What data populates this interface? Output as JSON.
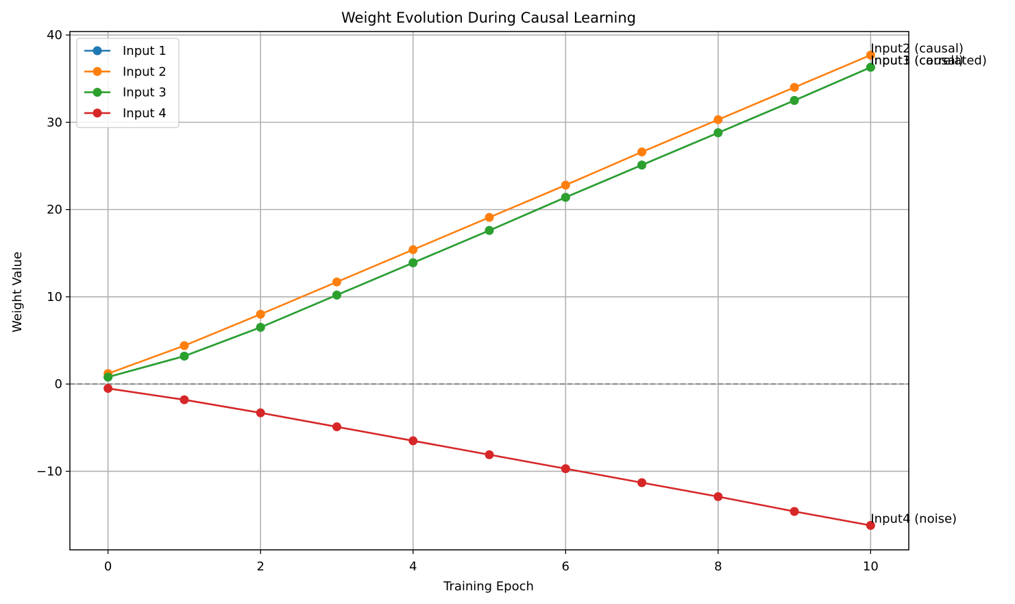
{
  "chart_data": {
    "type": "line",
    "title": "Weight Evolution During Causal Learning",
    "xlabel": "Training Epoch",
    "ylabel": "Weight Value",
    "xlim": [
      -0.5,
      10.5
    ],
    "ylim": [
      -19,
      40.4
    ],
    "xticks": [
      0,
      2,
      4,
      6,
      8,
      10
    ],
    "yticks": [
      -10,
      0,
      10,
      20,
      30,
      40
    ],
    "ytick_labels": [
      "−10",
      "0",
      "10",
      "20",
      "30",
      "40"
    ],
    "grid": true,
    "legend_position": "top-left",
    "reference_line": {
      "y": 0,
      "style": "dashed",
      "color": "#808080"
    },
    "x": [
      0,
      1,
      2,
      3,
      4,
      5,
      6,
      7,
      8,
      9,
      10
    ],
    "series": [
      {
        "name": "Input 1",
        "color": "#1f77b4",
        "values": [
          0.8,
          3.2,
          6.5,
          10.2,
          13.9,
          17.6,
          21.4,
          25.1,
          28.8,
          32.5,
          36.3
        ]
      },
      {
        "name": "Input 2",
        "color": "#ff7f0e",
        "values": [
          1.2,
          4.4,
          8.0,
          11.7,
          15.4,
          19.1,
          22.8,
          26.6,
          30.3,
          34.0,
          37.7
        ]
      },
      {
        "name": "Input 3",
        "color": "#2ca02c",
        "values": [
          0.8,
          3.2,
          6.5,
          10.2,
          13.9,
          17.6,
          21.4,
          25.1,
          28.8,
          32.5,
          36.3
        ]
      },
      {
        "name": "Input 4",
        "color": "#d62728",
        "values": [
          -0.5,
          -1.8,
          -3.3,
          -4.9,
          -6.5,
          -8.1,
          -9.7,
          -11.3,
          -12.9,
          -14.6,
          -16.2
        ]
      }
    ],
    "annotations": [
      {
        "text": "Input2 (causal)",
        "x": 10,
        "y": 37.7
      },
      {
        "text": "Input1 (causal)",
        "x": 10,
        "y": 36.3
      },
      {
        "text": "Input3 (correlated)",
        "x": 10,
        "y": 36.3
      },
      {
        "text": "Input4 (noise)",
        "x": 10,
        "y": -16.2
      }
    ]
  }
}
